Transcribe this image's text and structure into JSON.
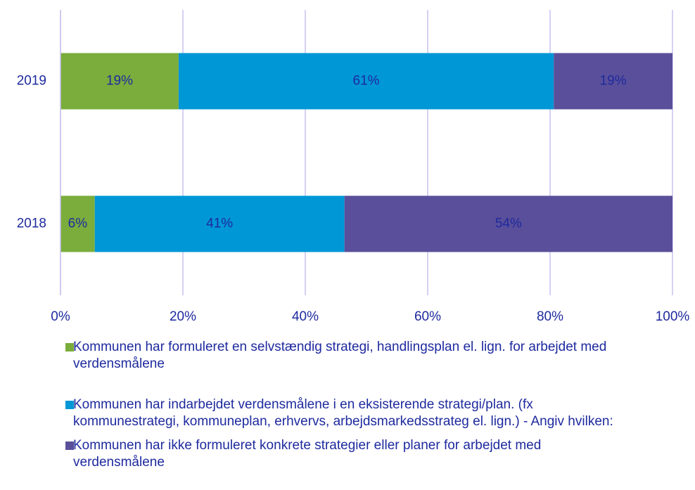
{
  "chart_data": {
    "type": "stacked_bar_horizontal",
    "categories": [
      "2019",
      "2018"
    ],
    "series": [
      {
        "name": "Kommunen har formuleret en selvstændig strategi, handlingsplan el. lign. for arbejdet med verdensmålene",
        "color": "#7aad3c",
        "values": [
          19.3,
          5.6
        ],
        "value_labels": [
          "19%",
          "6%"
        ]
      },
      {
        "name": "Kommunen har indarbejdet verdensmålene i en eksisterende strategi/plan. (fx kommunestrategi, kommuneplan, erhvervs, arbejdsmarkedsstrateg el. lign.) - Angiv hvilken:",
        "color": "#0097d7",
        "values": [
          61.3,
          40.8
        ],
        "value_labels": [
          "61%",
          "41%"
        ]
      },
      {
        "name": "Kommunen har ikke formuleret konkrete strategier eller planer for arbejdet med verdensmålene",
        "color": "#5a4f9a",
        "values": [
          19.4,
          53.6
        ],
        "value_labels": [
          "19%",
          "54%"
        ]
      }
    ],
    "xlim": [
      0,
      100
    ],
    "xticks": [
      {
        "value": 0,
        "label": "0%"
      },
      {
        "value": 20,
        "label": "20%"
      },
      {
        "value": 40,
        "label": "40%"
      },
      {
        "value": 60,
        "label": "60%"
      },
      {
        "value": 80,
        "label": "80%"
      },
      {
        "value": 100,
        "label": "100%"
      }
    ],
    "grid": true,
    "legend": "bottom"
  }
}
